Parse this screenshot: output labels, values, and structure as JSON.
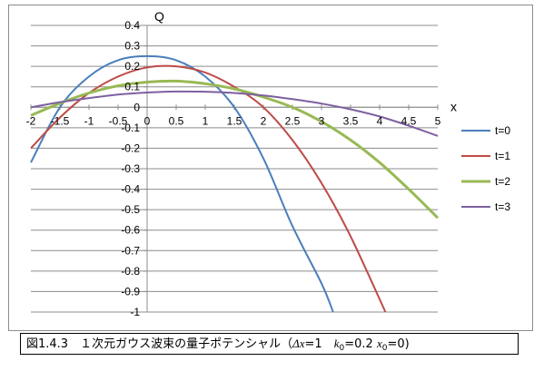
{
  "chart_data": {
    "type": "line",
    "xlabel": "x",
    "ylabel": "Q",
    "xlim": [
      -2,
      5
    ],
    "ylim": [
      -1,
      0.4
    ],
    "x_ticks": [
      "-2",
      "-1.5",
      "-1",
      "-0.5",
      "0",
      "0.5",
      "1",
      "1.5",
      "2",
      "2.5",
      "3",
      "3.5",
      "4",
      "4.5",
      "5"
    ],
    "y_ticks": [
      "0.4",
      "0.3",
      "0.2",
      "0.1",
      "0",
      "-0.1",
      "-0.2",
      "-0.3",
      "-0.4",
      "-0.5",
      "-0.6",
      "-0.7",
      "-0.8",
      "-0.9",
      "-1"
    ],
    "grid": "horizontal",
    "legend_position": "right",
    "series": [
      {
        "name": "t=0",
        "color": "#4a7ebb",
        "x": [
          -2,
          -1.5,
          -1,
          -0.5,
          0,
          0.5,
          1,
          1.5,
          2,
          2.5,
          3,
          3.2
        ],
        "y": [
          -0.27,
          0.0,
          0.15,
          0.23,
          0.25,
          0.23,
          0.15,
          0.0,
          -0.25,
          -0.58,
          -0.86,
          -1.0
        ]
      },
      {
        "name": "t=1",
        "color": "#be4b48",
        "x": [
          -2,
          -1.5,
          -1,
          -0.5,
          0,
          0.5,
          1,
          1.5,
          2,
          2.5,
          3,
          3.5,
          4.1
        ],
        "y": [
          -0.2,
          -0.05,
          0.07,
          0.15,
          0.195,
          0.2,
          0.17,
          0.1,
          0.0,
          -0.16,
          -0.37,
          -0.63,
          -1.0
        ]
      },
      {
        "name": "t=2",
        "color": "#98b954",
        "x": [
          -2,
          -1.5,
          -1,
          -0.5,
          0,
          0.5,
          1,
          1.5,
          2,
          2.5,
          3,
          3.5,
          4,
          4.5,
          5
        ],
        "y": [
          -0.04,
          0.02,
          0.07,
          0.105,
          0.123,
          0.128,
          0.115,
          0.09,
          0.05,
          0.0,
          -0.07,
          -0.16,
          -0.27,
          -0.4,
          -0.54
        ]
      },
      {
        "name": "t=3",
        "color": "#7d60a0",
        "x": [
          -2,
          -1.5,
          -1,
          -0.5,
          0,
          0.5,
          1,
          1.5,
          2,
          2.5,
          3,
          3.5,
          4,
          4.5,
          5
        ],
        "y": [
          0.0,
          0.025,
          0.045,
          0.062,
          0.072,
          0.077,
          0.076,
          0.07,
          0.058,
          0.04,
          0.018,
          -0.01,
          -0.045,
          -0.09,
          -0.14
        ]
      }
    ]
  },
  "caption": {
    "fig_label": "図1.4.3",
    "title": "１次元ガウス波束の量子ポテンシャル（",
    "delta": "Δx",
    "eq1": "=1",
    "k": "k",
    "k_sub": "0",
    "eq2": "=0.2",
    "xvar": "x",
    "x_sub": "0",
    "eq3": "=0)"
  }
}
